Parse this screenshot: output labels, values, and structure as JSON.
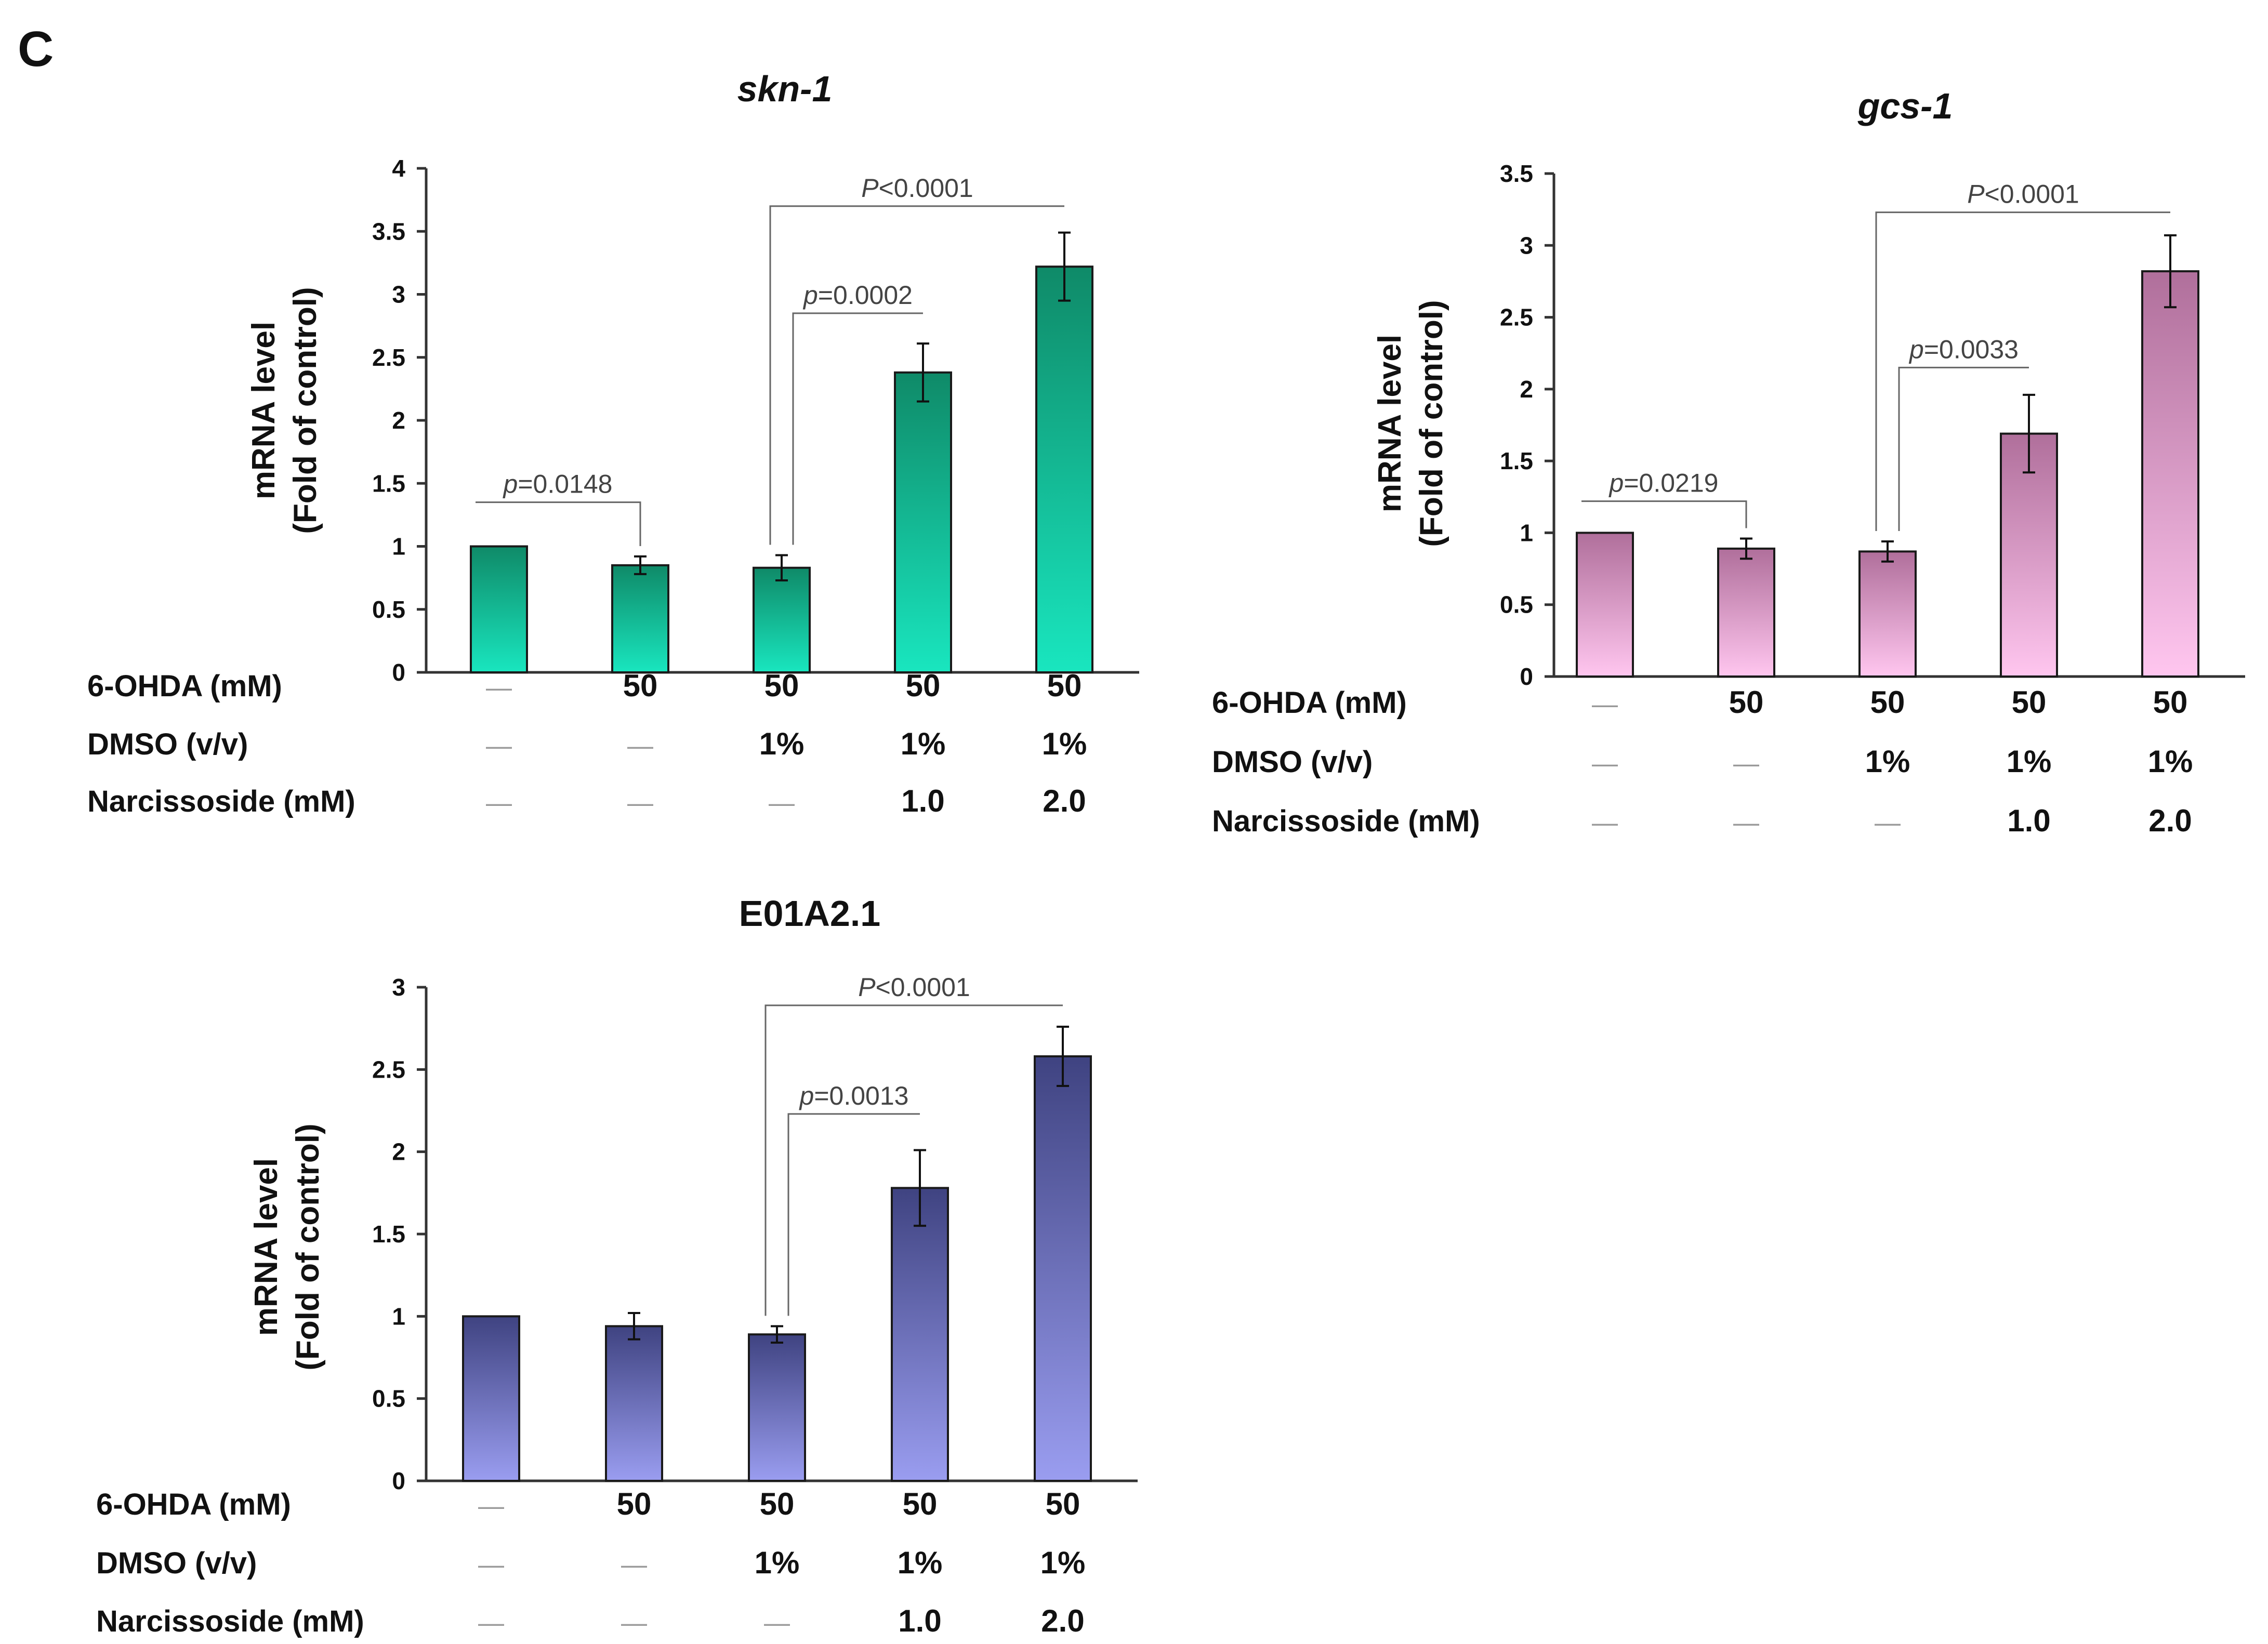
{
  "panel_label": "C",
  "row_labels": [
    "6-OHDA (mM)",
    "DMSO (v/v)",
    "Narcissoside  (mM)"
  ],
  "chart_data": [
    {
      "type": "bar",
      "title": "skn-1",
      "title_italic": true,
      "ylabel_line1": "mRNA level",
      "ylabel_line2": "(Fold of control)",
      "ylim": [
        0,
        4
      ],
      "yticks": [
        "0",
        "0.5",
        "1",
        "1.5",
        "2",
        "2.5",
        "3",
        "3.5",
        "4"
      ],
      "ytick_values": [
        0,
        0.5,
        1,
        1.5,
        2,
        2.5,
        3,
        3.5,
        4
      ],
      "values": [
        1.0,
        0.85,
        0.83,
        2.38,
        3.22
      ],
      "errors": [
        0,
        0.07,
        0.1,
        0.23,
        0.27
      ],
      "conditions": {
        "ohda": [
          "—",
          "50",
          "50",
          "50",
          "50"
        ],
        "dmso": [
          "—",
          "—",
          "1%",
          "1%",
          "1%"
        ],
        "narcissoside": [
          "—",
          "—",
          "—",
          "1.0",
          "2.0"
        ]
      },
      "colors": {
        "top": "#0f8a68",
        "bottom": "#19e6bf",
        "edge": "#1a1a1a"
      },
      "significance": [
        {
          "from": 0,
          "to": 1,
          "label_prefix": "p",
          "label_value": "=0.0148",
          "level": 1.35
        },
        {
          "from": 2,
          "to": 3,
          "label_prefix": "p",
          "label_value": "=0.0002",
          "level": 2.85
        },
        {
          "from": 2,
          "to": 4,
          "label_prefix": "P",
          "label_value": "<0.0001",
          "level": 3.7
        }
      ]
    },
    {
      "type": "bar",
      "title": "gcs-1",
      "title_italic": true,
      "ylabel_line1": "mRNA level",
      "ylabel_line2": "(Fold of control)",
      "ylim": [
        0,
        3.5
      ],
      "yticks": [
        "0",
        "0.5",
        "1",
        "1.5",
        "2",
        "2.5",
        "3",
        "3.5"
      ],
      "ytick_values": [
        0,
        0.5,
        1,
        1.5,
        2,
        2.5,
        3,
        3.5
      ],
      "values": [
        1.0,
        0.89,
        0.87,
        1.69,
        2.82
      ],
      "errors": [
        0,
        0.07,
        0.07,
        0.27,
        0.25
      ],
      "conditions": {
        "ohda": [
          "—",
          "50",
          "50",
          "50",
          "50"
        ],
        "dmso": [
          "—",
          "—",
          "1%",
          "1%",
          "1%"
        ],
        "narcissoside": [
          "—",
          "—",
          "—",
          "1.0",
          "2.0"
        ]
      },
      "colors": {
        "top": "#b06f9b",
        "bottom": "#ffc6ef",
        "edge": "#1a1a1a"
      },
      "significance": [
        {
          "from": 0,
          "to": 1,
          "label_prefix": "p",
          "label_value": "=0.0219",
          "level": 1.22
        },
        {
          "from": 2,
          "to": 3,
          "label_prefix": "p",
          "label_value": "=0.0033",
          "level": 2.15
        },
        {
          "from": 2,
          "to": 4,
          "label_prefix": "P",
          "label_value": "<0.0001",
          "level": 3.23
        }
      ]
    },
    {
      "type": "bar",
      "title": "E01A2.1",
      "title_italic": false,
      "ylabel_line1": "mRNA level",
      "ylabel_line2": "(Fold of control)",
      "ylim": [
        0,
        3
      ],
      "yticks": [
        "0",
        "0.5",
        "1",
        "1.5",
        "2",
        "2.5",
        "3"
      ],
      "ytick_values": [
        0,
        0.5,
        1,
        1.5,
        2,
        2.5,
        3
      ],
      "values": [
        1.0,
        0.94,
        0.89,
        1.78,
        2.58
      ],
      "errors": [
        0,
        0.08,
        0.05,
        0.23,
        0.18
      ],
      "conditions": {
        "ohda": [
          "—",
          "50",
          "50",
          "50",
          "50"
        ],
        "dmso": [
          "—",
          "—",
          "1%",
          "1%",
          "1%"
        ],
        "narcissoside": [
          "—",
          "—",
          "—",
          "1.0",
          "2.0"
        ]
      },
      "colors": {
        "top": "#3f4381",
        "bottom": "#9a9df0",
        "edge": "#1a1a1a"
      },
      "significance": [
        {
          "from": 2,
          "to": 3,
          "label_prefix": "p",
          "label_value": "=0.0013",
          "level": 2.23
        },
        {
          "from": 2,
          "to": 4,
          "label_prefix": "P",
          "label_value": "<0.0001",
          "level": 2.89
        }
      ]
    }
  ]
}
